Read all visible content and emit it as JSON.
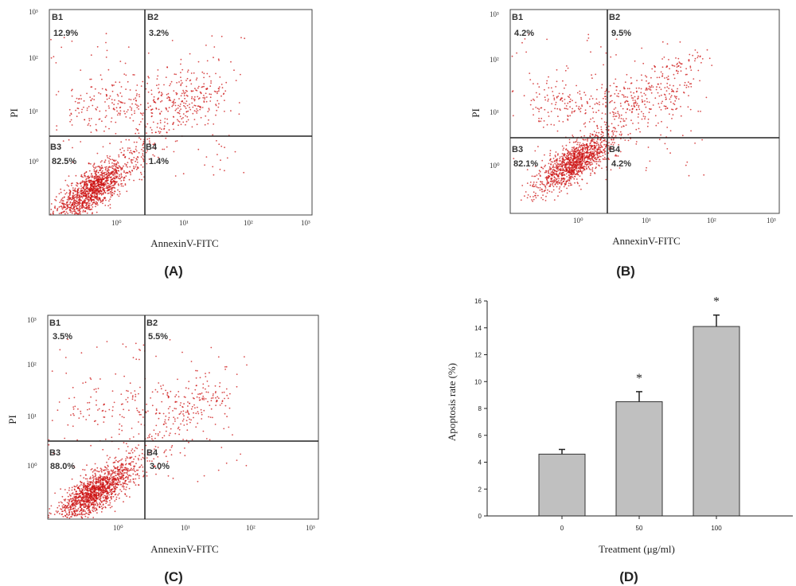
{
  "flow_panels": [
    {
      "caption": "(A)",
      "xlabel": "AnnexinV-FITC",
      "ylabel": "PI",
      "quadrants": [
        {
          "name": "B1",
          "pct": "12.9%"
        },
        {
          "name": "B2",
          "pct": "3.2%"
        },
        {
          "name": "B3",
          "pct": "82.5%"
        },
        {
          "name": "B4",
          "pct": "1.4%"
        }
      ],
      "x_ticks": [
        "10⁰",
        "10¹",
        "10²",
        "10³"
      ],
      "y_ticks": [
        "10³",
        "10²",
        "10¹",
        "10⁰"
      ]
    },
    {
      "caption": "(B)",
      "xlabel": "AnnexinV-FITC",
      "ylabel": "PI",
      "quadrants": [
        {
          "name": "B1",
          "pct": "4.2%"
        },
        {
          "name": "B2",
          "pct": "9.5%"
        },
        {
          "name": "B3",
          "pct": "82.1%"
        },
        {
          "name": "B4",
          "pct": "4.2%"
        }
      ],
      "x_ticks": [
        "10⁰",
        "10¹",
        "10²",
        "10³"
      ],
      "y_ticks": [
        "10³",
        "10²",
        "10¹",
        "10⁰"
      ]
    },
    {
      "caption": "(C)",
      "xlabel": "AnnexinV-FITC",
      "ylabel": "PI",
      "quadrants": [
        {
          "name": "B1",
          "pct": "3.5%"
        },
        {
          "name": "B2",
          "pct": "5.5%"
        },
        {
          "name": "B3",
          "pct": "88.0%"
        },
        {
          "name": "B4",
          "pct": "3.0%"
        }
      ],
      "x_ticks": [
        "10⁰",
        "10¹",
        "10²",
        "10³"
      ],
      "y_ticks": [
        "10³",
        "10²",
        "10¹",
        "10⁰"
      ]
    }
  ],
  "chart_data": {
    "type": "bar",
    "caption": "(D)",
    "categories": [
      "0",
      "50",
      "100"
    ],
    "values": [
      4.6,
      8.5,
      14.1
    ],
    "errors": [
      0.35,
      0.75,
      0.85
    ],
    "significance": [
      "",
      "*",
      "*"
    ],
    "xlabel": "Treatment (μg/ml)",
    "ylabel": "Apoptosis rate (%)",
    "ylim": [
      0,
      16
    ],
    "yticks": [
      "0",
      "2",
      "4",
      "6",
      "8",
      "10",
      "12",
      "14",
      "16"
    ],
    "bar_color": "#c0c0c0",
    "dot_color": "#cc1111"
  }
}
